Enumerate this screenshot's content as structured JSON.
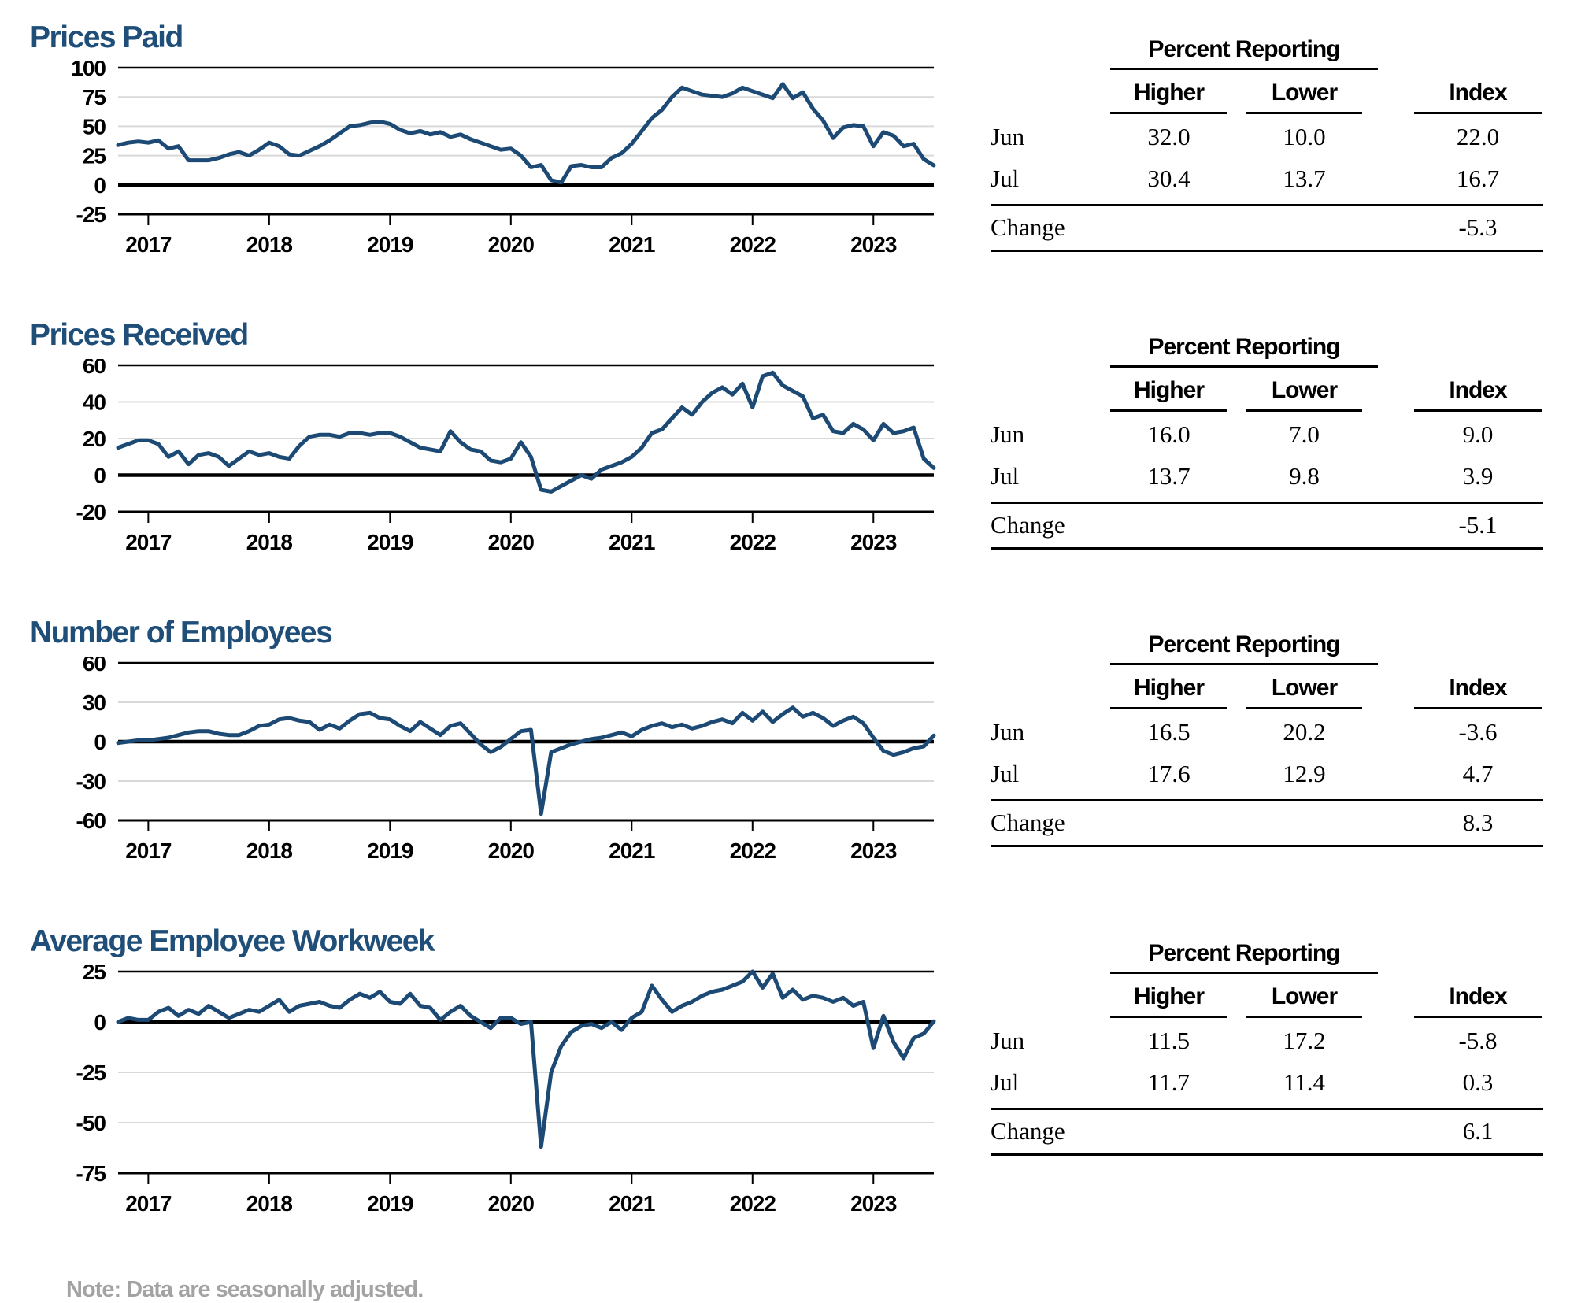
{
  "note": "Note: Data are seasonally adjusted.",
  "colors": {
    "line": "#1C4A74",
    "title_blue": "#1F4E79",
    "grid_gray": "#D9D9D9",
    "axis_black": "#000000",
    "note_gray": "#A3A3A3"
  },
  "table_headers": {
    "group": "Percent Reporting",
    "higher": "Higher",
    "lower": "Lower",
    "index": "Index",
    "change_label": "Change"
  },
  "sections": [
    {
      "slug": "prices-paid",
      "title": "Prices Paid",
      "table": {
        "rows": [
          {
            "label": "Jun",
            "higher": "32.0",
            "lower": "10.0",
            "index": "22.0"
          },
          {
            "label": "Jul",
            "higher": "30.4",
            "lower": "13.7",
            "index": "16.7"
          }
        ],
        "change": "-5.3"
      }
    },
    {
      "slug": "prices-received",
      "title": "Prices Received",
      "table": {
        "rows": [
          {
            "label": "Jun",
            "higher": "16.0",
            "lower": "7.0",
            "index": "9.0"
          },
          {
            "label": "Jul",
            "higher": "13.7",
            "lower": "9.8",
            "index": "3.9"
          }
        ],
        "change": "-5.1"
      }
    },
    {
      "slug": "number-of-employees",
      "title": "Number of Employees",
      "table": {
        "rows": [
          {
            "label": "Jun",
            "higher": "16.5",
            "lower": "20.2",
            "index": "-3.6"
          },
          {
            "label": "Jul",
            "higher": "17.6",
            "lower": "12.9",
            "index": "4.7"
          }
        ],
        "change": "8.3"
      }
    },
    {
      "slug": "average-employee-workweek",
      "title": "Average Employee Workweek",
      "table": {
        "rows": [
          {
            "label": "Jun",
            "higher": "11.5",
            "lower": "17.2",
            "index": "-5.8"
          },
          {
            "label": "Jul",
            "higher": "11.7",
            "lower": "11.4",
            "index": "0.3"
          }
        ],
        "change": "6.1"
      }
    }
  ],
  "chart_data": [
    {
      "type": "line",
      "title": "Prices Paid",
      "x_start": "2016-10",
      "x_end": "2023-07",
      "x_tick_labels": [
        "2017",
        "2018",
        "2019",
        "2020",
        "2021",
        "2022",
        "2023"
      ],
      "x_first_tick_index": 3,
      "x_tick_step": 12,
      "ylim": [
        -25,
        100
      ],
      "yticks": [
        100,
        75,
        50,
        25,
        0,
        -25
      ],
      "grid": true,
      "legend": "none",
      "values": [
        34,
        36,
        37,
        36,
        38,
        31,
        33,
        21,
        21,
        21,
        23,
        26,
        28,
        25,
        30,
        36,
        33,
        26,
        25,
        29,
        33,
        38,
        44,
        50,
        51,
        53,
        54,
        52,
        47,
        44,
        46,
        43,
        45,
        41,
        43,
        39,
        36,
        33,
        30,
        31,
        25,
        15,
        17,
        4,
        2,
        16,
        17,
        15,
        15,
        23,
        27,
        35,
        46,
        57,
        64,
        75,
        83,
        80,
        77,
        76,
        75,
        78,
        83,
        80,
        77,
        74,
        86,
        74,
        79,
        65,
        55,
        40,
        49,
        51,
        50,
        33,
        45,
        42,
        33,
        35,
        22,
        16.7
      ]
    },
    {
      "type": "line",
      "title": "Prices Received",
      "x_start": "2016-10",
      "x_end": "2023-07",
      "x_tick_labels": [
        "2017",
        "2018",
        "2019",
        "2020",
        "2021",
        "2022",
        "2023"
      ],
      "x_first_tick_index": 3,
      "x_tick_step": 12,
      "ylim": [
        -20,
        60
      ],
      "yticks": [
        60,
        40,
        20,
        0,
        -20
      ],
      "grid": true,
      "legend": "none",
      "values": [
        15,
        17,
        19,
        19,
        17,
        10,
        13,
        6,
        11,
        12,
        10,
        5,
        9,
        13,
        11,
        12,
        10,
        9,
        16,
        21,
        22,
        22,
        21,
        23,
        23,
        22,
        23,
        23,
        21,
        18,
        15,
        14,
        13,
        24,
        18,
        14,
        13,
        8,
        7,
        9,
        18,
        10,
        -8,
        -9,
        -6,
        -3,
        0,
        -2,
        3,
        5,
        7,
        10,
        15,
        23,
        25,
        31,
        37,
        33,
        40,
        45,
        48,
        44,
        50,
        37,
        54,
        56,
        49,
        46,
        43,
        31,
        33,
        24,
        23,
        28,
        25,
        19,
        28,
        23,
        24,
        26,
        9,
        3.9
      ]
    },
    {
      "type": "line",
      "title": "Number of Employees",
      "x_start": "2016-10",
      "x_end": "2023-07",
      "x_tick_labels": [
        "2017",
        "2018",
        "2019",
        "2020",
        "2021",
        "2022",
        "2023"
      ],
      "x_first_tick_index": 3,
      "x_tick_step": 12,
      "ylim": [
        -60,
        60
      ],
      "yticks": [
        60,
        30,
        0,
        -30,
        -60
      ],
      "grid": true,
      "legend": "none",
      "values": [
        -1,
        0,
        1,
        1,
        2,
        3,
        5,
        7,
        8,
        8,
        6,
        5,
        5,
        8,
        12,
        13,
        17,
        18,
        16,
        15,
        9,
        13,
        10,
        16,
        21,
        22,
        18,
        17,
        12,
        8,
        15,
        10,
        5,
        12,
        14,
        6,
        -2,
        -8,
        -4,
        2,
        8,
        9,
        -55,
        -8,
        -5,
        -2,
        0,
        2,
        3,
        5,
        7,
        4,
        9,
        12,
        14,
        11,
        13,
        10,
        12,
        15,
        17,
        14,
        22,
        16,
        23,
        15,
        21,
        26,
        19,
        22,
        18,
        12,
        16,
        19,
        14,
        3,
        -7,
        -10,
        -8,
        -5,
        -3.6,
        4.7
      ]
    },
    {
      "type": "line",
      "title": "Average Employee Workweek",
      "x_start": "2016-10",
      "x_end": "2023-07",
      "x_tick_labels": [
        "2017",
        "2018",
        "2019",
        "2020",
        "2021",
        "2022",
        "2023"
      ],
      "x_first_tick_index": 3,
      "x_tick_step": 12,
      "ylim": [
        -75,
        25
      ],
      "yticks": [
        25,
        0,
        -25,
        -50,
        -75
      ],
      "grid": true,
      "legend": "none",
      "values": [
        0,
        2,
        1,
        1,
        5,
        7,
        3,
        6,
        4,
        8,
        5,
        2,
        4,
        6,
        5,
        8,
        11,
        5,
        8,
        9,
        10,
        8,
        7,
        11,
        14,
        12,
        15,
        10,
        9,
        14,
        8,
        7,
        1,
        5,
        8,
        3,
        0,
        -3,
        2,
        2,
        -1,
        0,
        -62,
        -25,
        -12,
        -5,
        -2,
        -1,
        -3,
        0,
        -4,
        2,
        5,
        18,
        11,
        5,
        8,
        10,
        13,
        15,
        16,
        18,
        20,
        25,
        17,
        24,
        12,
        16,
        11,
        13,
        12,
        10,
        12,
        8,
        10,
        -13,
        3,
        -10,
        -18,
        -8,
        -5.8,
        0.3
      ]
    }
  ]
}
